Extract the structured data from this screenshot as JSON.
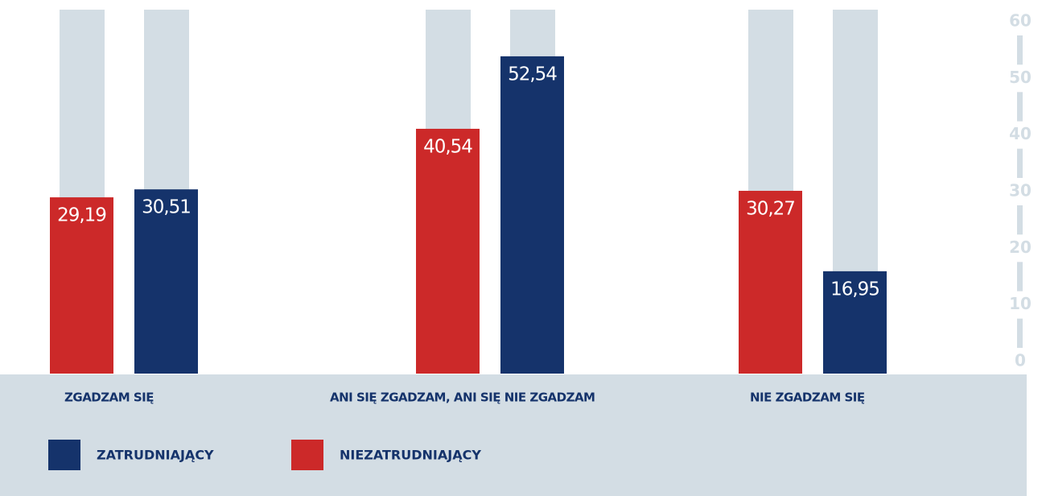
{
  "chart_data": {
    "type": "bar",
    "categories": [
      "ZGADZAM SIĘ",
      "ANI SIĘ ZGADZAM, ANI SIĘ NIE ZGADZAM",
      "NIE ZGADZAM SIĘ"
    ],
    "series": [
      {
        "name": "ZATRUDNIAJĄCY",
        "color": "#15336b",
        "values": [
          30.51,
          52.54,
          16.95
        ],
        "value_labels": [
          "30,51",
          "52,54",
          "16,95"
        ]
      },
      {
        "name": "NIEZATRUDNIAJĄCY",
        "color": "#cc2929",
        "values": [
          29.19,
          40.54,
          30.27
        ],
        "value_labels": [
          "29,19",
          "40,54",
          "30,27"
        ]
      }
    ],
    "ylim": [
      0,
      60
    ],
    "yticks": [
      0,
      10,
      20,
      30,
      40,
      50,
      60
    ]
  }
}
